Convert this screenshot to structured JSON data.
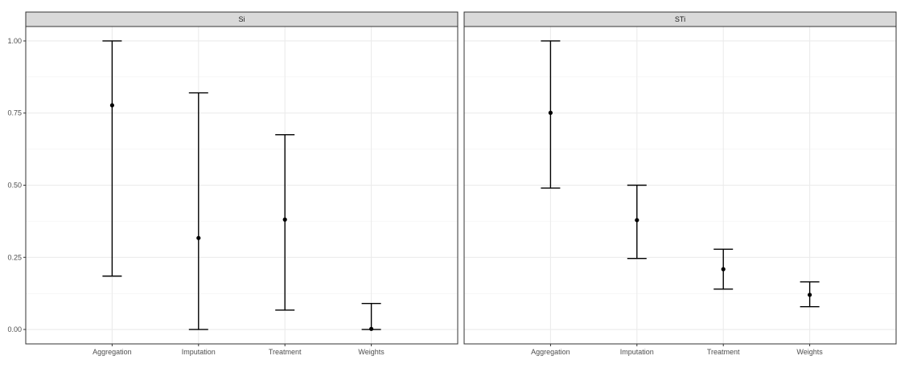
{
  "chart_data": {
    "type": "errorbar",
    "facet_variable": "index",
    "categories": [
      "Aggregation",
      "Imputation",
      "Treatment",
      "Weights"
    ],
    "ylim": [
      -0.05,
      1.05
    ],
    "y_ticks": [
      "0.00",
      "0.25",
      "0.50",
      "0.75",
      "1.00"
    ],
    "grid": true,
    "panels": [
      {
        "strip": "Si",
        "points": [
          {
            "category": "Aggregation",
            "value": 0.777,
            "low": 0.185,
            "high": 1.0
          },
          {
            "category": "Imputation",
            "value": 0.317,
            "low": 0.0,
            "high": 0.82
          },
          {
            "category": "Treatment",
            "value": 0.381,
            "low": 0.067,
            "high": 0.675
          },
          {
            "category": "Weights",
            "value": 0.002,
            "low": 0.0,
            "high": 0.09
          }
        ]
      },
      {
        "strip": "STi",
        "points": [
          {
            "category": "Aggregation",
            "value": 0.751,
            "low": 0.49,
            "high": 1.0
          },
          {
            "category": "Imputation",
            "value": 0.379,
            "low": 0.246,
            "high": 0.5
          },
          {
            "category": "Treatment",
            "value": 0.209,
            "low": 0.14,
            "high": 0.278
          },
          {
            "category": "Weights",
            "value": 0.12,
            "low": 0.079,
            "high": 0.165
          }
        ]
      }
    ]
  }
}
